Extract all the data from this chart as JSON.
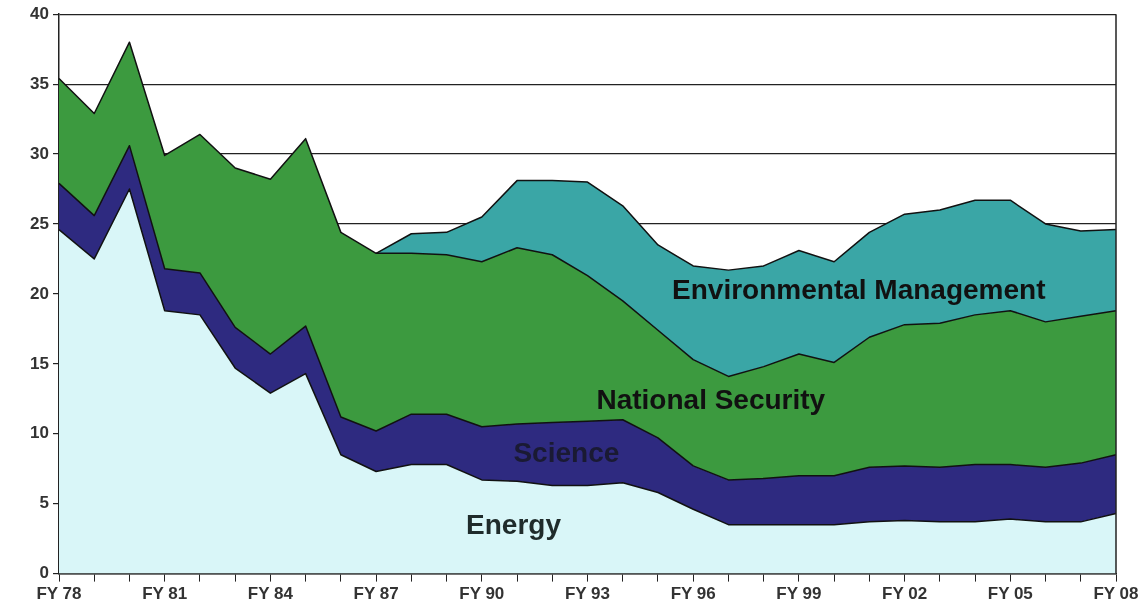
{
  "chart_data": {
    "type": "area",
    "stacked": true,
    "categories": [
      "FY 78",
      null,
      null,
      "FY 81",
      null,
      null,
      "FY 84",
      null,
      null,
      "FY 87",
      null,
      null,
      "FY 90",
      null,
      null,
      "FY 93",
      null,
      null,
      "FY 96",
      null,
      null,
      "FY 99",
      null,
      null,
      "FY 02",
      null,
      null,
      "FY 05",
      null,
      null,
      "FY 08"
    ],
    "series": [
      {
        "name": "Energy",
        "color": "#d9f6f8",
        "values": [
          24.6,
          22.5,
          27.5,
          18.8,
          18.5,
          14.7,
          12.9,
          14.3,
          8.5,
          7.3,
          7.8,
          7.8,
          6.7,
          6.6,
          6.3,
          6.3,
          6.5,
          5.8,
          4.6,
          3.5,
          3.5,
          3.5,
          3.5,
          3.7,
          3.8,
          3.7,
          3.7,
          3.9,
          3.7,
          3.7,
          4.3
        ]
      },
      {
        "name": "Science",
        "color": "#2e2a80",
        "values": [
          3.3,
          3.1,
          3.1,
          3.0,
          3.0,
          2.9,
          2.8,
          3.4,
          2.7,
          2.9,
          3.6,
          3.6,
          3.8,
          4.1,
          4.5,
          4.6,
          4.5,
          3.9,
          3.1,
          3.2,
          3.3,
          3.5,
          3.5,
          3.9,
          3.9,
          3.9,
          4.1,
          3.9,
          3.9,
          4.2,
          4.2
        ]
      },
      {
        "name": "National Security",
        "color": "#3c9a3f",
        "values": [
          7.5,
          7.3,
          7.4,
          8.1,
          9.9,
          11.4,
          12.5,
          13.4,
          13.2,
          12.7,
          11.5,
          11.4,
          11.8,
          12.6,
          12.0,
          10.4,
          8.5,
          7.7,
          7.6,
          7.4,
          8.0,
          8.7,
          8.1,
          9.3,
          10.1,
          10.3,
          10.7,
          11.0,
          10.4,
          10.5,
          10.3
        ]
      },
      {
        "name": "Environmental Management",
        "color": "#3aa6a6",
        "values": [
          null,
          null,
          null,
          null,
          null,
          null,
          null,
          null,
          null,
          0,
          1.4,
          1.6,
          3.2,
          4.8,
          5.3,
          6.7,
          6.8,
          6.1,
          6.7,
          7.6,
          7.2,
          7.4,
          7.2,
          7.5,
          7.9,
          8.1,
          8.2,
          7.9,
          7.0,
          6.1,
          5.8
        ]
      }
    ],
    "ylim": [
      0,
      40
    ],
    "yticks": [
      0,
      5,
      10,
      15,
      20,
      25,
      30,
      35,
      40
    ],
    "grid": "y",
    "legend": false
  }
}
